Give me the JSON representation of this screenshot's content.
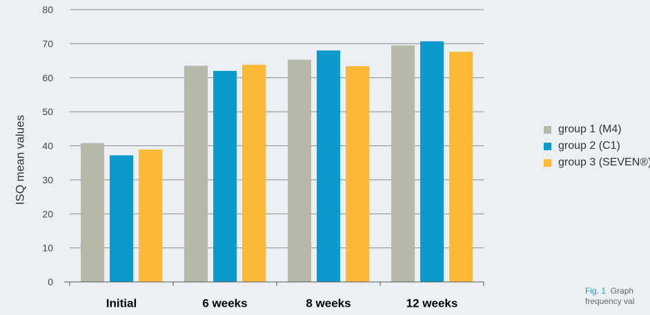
{
  "chart_data": {
    "type": "bar",
    "title": "",
    "xlabel": "",
    "ylabel": "ISQ mean values",
    "ylim": [
      0,
      80
    ],
    "yticks": [
      0,
      10,
      20,
      30,
      40,
      50,
      60,
      70,
      80
    ],
    "grid": true,
    "legend_position": "right",
    "categories": [
      "Initial",
      "6 weeks",
      "8 weeks",
      "12 weeks"
    ],
    "series": [
      {
        "name": "group 1 (M4)",
        "color": "#b8b8a8",
        "values": [
          40.8,
          63.5,
          65.3,
          69.5
        ]
      },
      {
        "name": "group 2 (C1)",
        "color": "#0a9bcc",
        "values": [
          37.2,
          62.0,
          68.0,
          70.7
        ]
      },
      {
        "name": "group 3 (SEVEN®)",
        "color": "#fcb935",
        "values": [
          38.9,
          63.8,
          63.4,
          67.6
        ]
      }
    ]
  },
  "caption": {
    "fig_label": "Fig. 1",
    "line1": "Graph",
    "line2": "frequency val"
  }
}
